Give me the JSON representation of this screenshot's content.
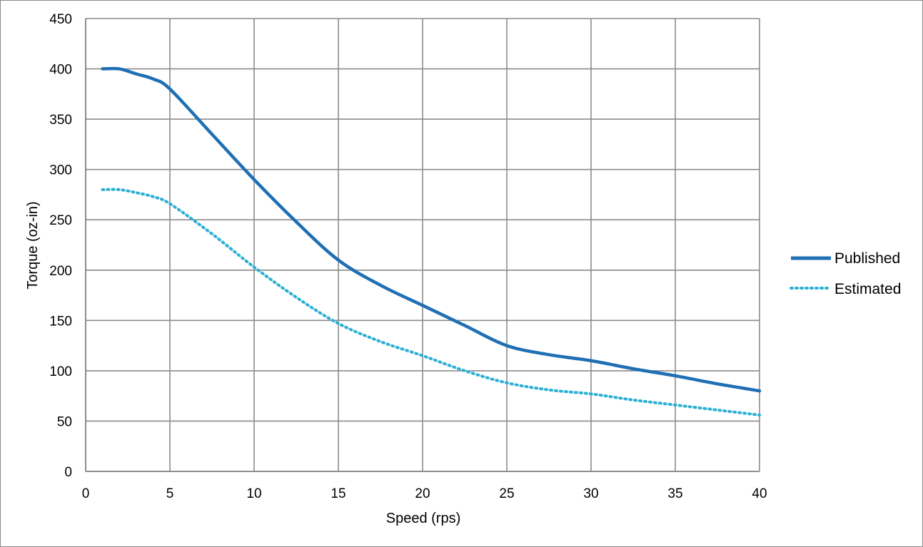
{
  "chart_data": {
    "type": "line",
    "title": "",
    "xlabel": "Speed (rps)",
    "ylabel": "Torque (oz-in)",
    "xlim": [
      0,
      40
    ],
    "ylim": [
      0,
      450
    ],
    "x_ticks": [
      "0",
      "5",
      "10",
      "15",
      "20",
      "25",
      "30",
      "35",
      "40"
    ],
    "y_ticks": [
      "0",
      "50",
      "100",
      "150",
      "200",
      "250",
      "300",
      "350",
      "400",
      "450"
    ],
    "grid": true,
    "legend_position": "right",
    "series": [
      {
        "name": "Published",
        "color": "#1f6fb4",
        "style": "solid",
        "x": [
          1,
          2,
          3,
          4,
          5,
          7.5,
          10,
          12.5,
          15,
          17.5,
          20,
          22.5,
          25,
          27.5,
          30,
          32.5,
          35,
          37.5,
          40
        ],
        "y": [
          400,
          400,
          395,
          390,
          380,
          335,
          290,
          248,
          210,
          185,
          165,
          145,
          125,
          116,
          110,
          102,
          95,
          87,
          80
        ]
      },
      {
        "name": "Estimated",
        "color": "#2bb0d4",
        "style": "dotted",
        "x": [
          1,
          2,
          3,
          4,
          5,
          7.5,
          10,
          12.5,
          15,
          17.5,
          20,
          22.5,
          25,
          27.5,
          30,
          32.5,
          35,
          37.5,
          40
        ],
        "y": [
          280,
          280,
          277,
          273,
          266,
          236,
          203,
          173,
          147,
          129,
          115,
          100,
          88,
          81,
          77,
          71,
          66,
          61,
          56
        ]
      }
    ]
  }
}
